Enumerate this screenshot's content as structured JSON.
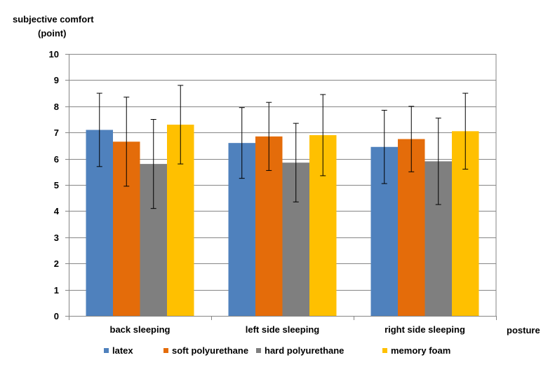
{
  "chart_data": {
    "type": "bar",
    "ylabel": "subjective comfort",
    "ylabel_unit": "(point)",
    "xlabel": "posture",
    "ylim": [
      0,
      10
    ],
    "yticks": [
      0,
      1,
      2,
      3,
      4,
      5,
      6,
      7,
      8,
      9,
      10
    ],
    "grid": true,
    "legend_position": "bottom",
    "categories": [
      "back sleeping",
      "left side sleeping",
      "right side sleeping"
    ],
    "series": [
      {
        "name": "latex",
        "color": "#4f81bd",
        "values": [
          7.1,
          6.6,
          6.45
        ],
        "error": [
          1.4,
          1.35,
          1.4
        ]
      },
      {
        "name": "soft polyurethane",
        "color": "#e46c0a",
        "values": [
          6.65,
          6.85,
          6.75
        ],
        "error": [
          1.7,
          1.3,
          1.25
        ]
      },
      {
        "name": "hard polyurethane",
        "color": "#7f7f7f",
        "values": [
          5.8,
          5.85,
          5.9
        ],
        "error": [
          1.7,
          1.5,
          1.65
        ]
      },
      {
        "name": "memory foam",
        "color": "#ffc000",
        "values": [
          7.3,
          6.9,
          7.05
        ],
        "error": [
          1.5,
          1.55,
          1.45
        ]
      }
    ]
  }
}
